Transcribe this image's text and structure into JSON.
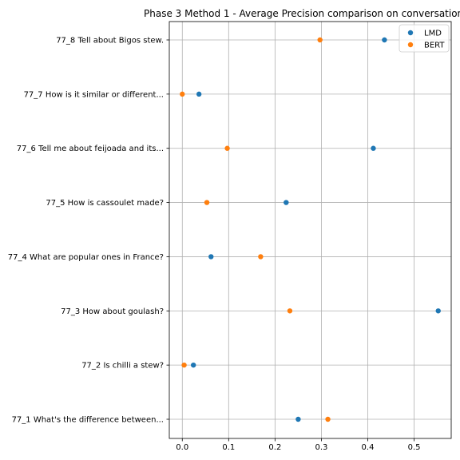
{
  "chart_data": {
    "type": "scatter",
    "title": "Phase 3 Method 1 - Average Precision comparison on conversation",
    "xlabel": "",
    "ylabel": "",
    "xlim": [
      -0.028,
      0.58
    ],
    "xticks": [
      0.0,
      0.1,
      0.2,
      0.3,
      0.4,
      0.5
    ],
    "xtick_labels": [
      "0.0",
      "0.1",
      "0.2",
      "0.3",
      "0.4",
      "0.5"
    ],
    "grid": true,
    "legend_position": "top-right",
    "categories": [
      "77_1 What's the difference between...",
      "77_2 Is chilli a stew?",
      "77_3 How about goulash?",
      "77_4 What are popular ones in France?",
      "77_5 How is cassoulet made?",
      "77_6 Tell me about feijoada and its...",
      "77_7 How is it similar or different...",
      "77_8 Tell about Bigos stew."
    ],
    "series": [
      {
        "name": "LMD",
        "color": "#1f77b4",
        "values": [
          0.25,
          0.024,
          0.552,
          0.062,
          0.224,
          0.412,
          0.036,
          0.436
        ]
      },
      {
        "name": "BERT",
        "color": "#ff7f0e",
        "values": [
          0.314,
          0.004,
          0.232,
          0.169,
          0.053,
          0.097,
          0.0,
          0.297
        ]
      }
    ]
  }
}
